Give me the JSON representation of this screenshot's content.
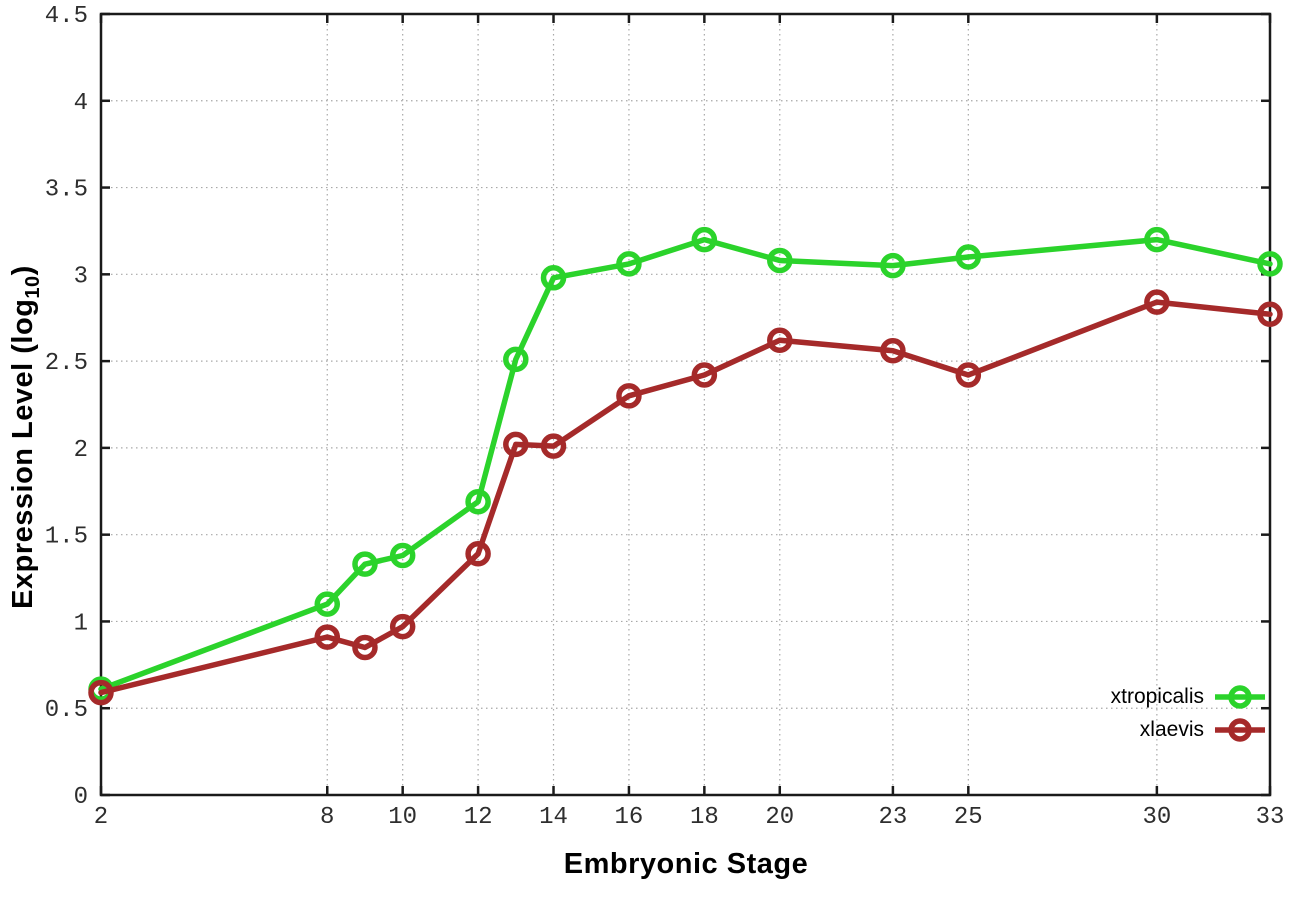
{
  "chart_data": {
    "type": "line",
    "title": "",
    "xlabel": "Embryonic Stage",
    "ylabel": {
      "prefix": "Expression Level (log",
      "sub": "10",
      "suffix": ")"
    },
    "ylabel_text": "Expression Level (log10)",
    "xlim": [
      2,
      33
    ],
    "ylim": [
      0,
      4.5
    ],
    "xticks": [
      2,
      8,
      10,
      12,
      14,
      16,
      18,
      20,
      23,
      25,
      30,
      33
    ],
    "xtick_labels": [
      "2",
      "8",
      "10",
      "12",
      "14",
      "16",
      "18",
      "20",
      "23",
      "25",
      "30",
      "33"
    ],
    "yticks": [
      0,
      0.5,
      1,
      1.5,
      2,
      2.5,
      3,
      3.5,
      4,
      4.5
    ],
    "ytick_labels": [
      "0",
      "0.5",
      "1",
      "1.5",
      "2",
      "2.5",
      "3",
      "3.5",
      "4",
      "4.5"
    ],
    "grid": true,
    "grid_style": "dotted",
    "legend_position": "inside-bottom-right",
    "x": [
      2,
      8,
      9,
      10,
      12,
      13,
      14,
      16,
      18,
      20,
      23,
      25,
      30,
      33
    ],
    "series": [
      {
        "name": "xtropicalis",
        "color": "#2bd32b",
        "marker": "open-circle",
        "values": [
          0.61,
          1.1,
          1.33,
          1.38,
          1.69,
          2.51,
          2.98,
          3.06,
          3.2,
          3.08,
          3.05,
          3.1,
          3.2,
          3.06
        ]
      },
      {
        "name": "xlaevis",
        "color": "#a52a2a",
        "marker": "open-circle",
        "values": [
          0.59,
          0.91,
          0.85,
          0.97,
          1.39,
          2.02,
          2.01,
          2.3,
          2.42,
          2.62,
          2.56,
          2.42,
          2.84,
          2.77
        ]
      }
    ],
    "colors": {
      "background": "#ffffff",
      "border": "#1a1a1a",
      "gridline": "#a8a8a8",
      "tick_label": "#2e2e2e"
    }
  }
}
